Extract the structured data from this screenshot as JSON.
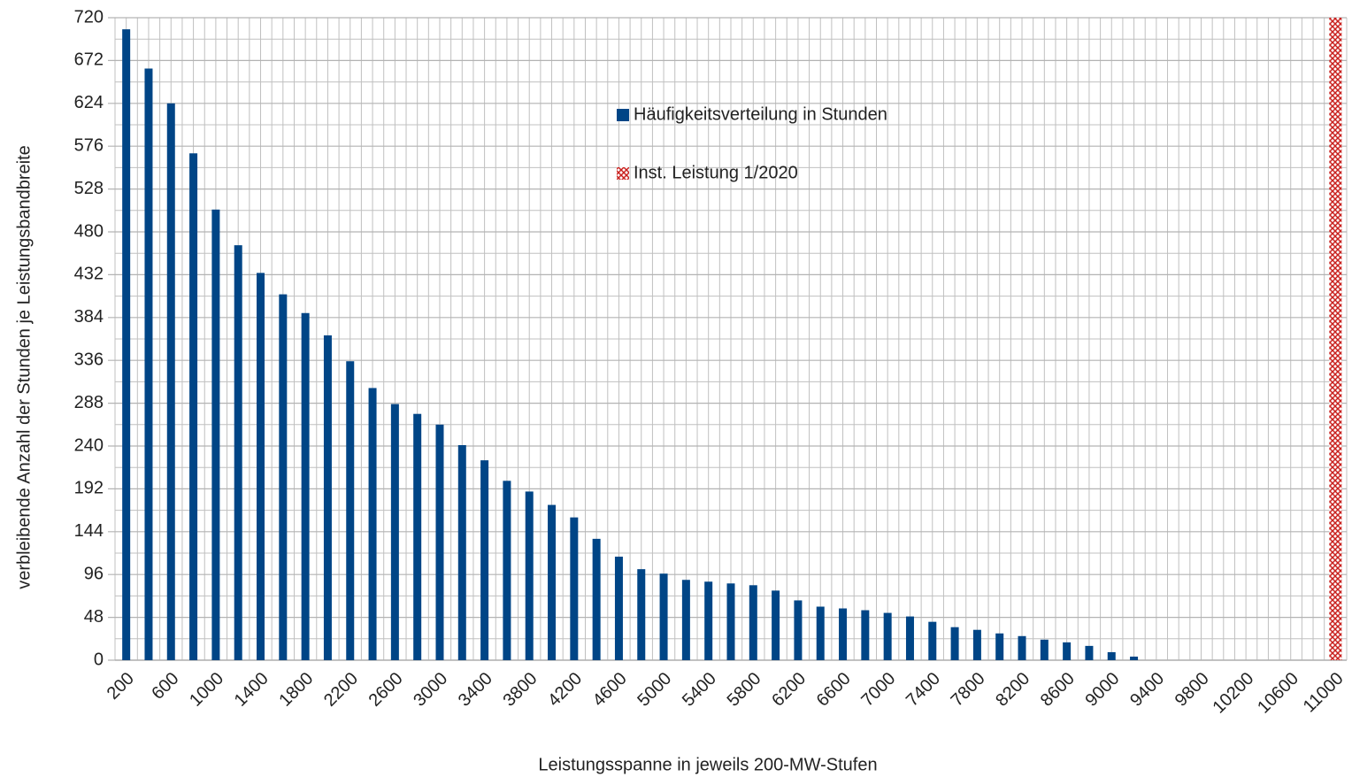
{
  "chart_data": {
    "type": "bar",
    "xlabel": "Leistungsspanne in jeweils 200-MW-Stufen",
    "ylabel": "verbleibende Anzahl der Stunden je Leistungsbandbreite",
    "categories": [
      "200",
      null,
      "600",
      null,
      "1000",
      null,
      "1400",
      null,
      "1800",
      null,
      "2200",
      null,
      "2600",
      null,
      "3000",
      null,
      "3400",
      null,
      "3800",
      null,
      "4200",
      null,
      "4600",
      null,
      "5000",
      null,
      "5400",
      null,
      "5800",
      null,
      "6200",
      null,
      "6600",
      null,
      "7000",
      null,
      "7400",
      null,
      "7800",
      null,
      "8200",
      null,
      "8600",
      null,
      "9000",
      null,
      "9400",
      null,
      "9800",
      null,
      "10200",
      null,
      "10600",
      null,
      "11000"
    ],
    "series": [
      {
        "name": "Häufigkeitsverteilung in Stunden",
        "color": "#004586",
        "pattern": "solid",
        "values": [
          707,
          663,
          624,
          568,
          505,
          465,
          434,
          410,
          389,
          364,
          335,
          305,
          287,
          276,
          264,
          241,
          224,
          201,
          189,
          174,
          160,
          136,
          116,
          102,
          97,
          90,
          88,
          86,
          84,
          78,
          67,
          60,
          58,
          56,
          53,
          49,
          43,
          37,
          34,
          30,
          27,
          23,
          20,
          16,
          9,
          4,
          0,
          0,
          0,
          0,
          0,
          0,
          0,
          0,
          null
        ]
      },
      {
        "name": "Inst. Leistung 1/2020",
        "color": "#c9211e",
        "pattern": "crosshatch",
        "values": [
          null,
          null,
          null,
          null,
          null,
          null,
          null,
          null,
          null,
          null,
          null,
          null,
          null,
          null,
          null,
          null,
          null,
          null,
          null,
          null,
          null,
          null,
          null,
          null,
          null,
          null,
          null,
          null,
          null,
          null,
          null,
          null,
          null,
          null,
          null,
          null,
          null,
          null,
          null,
          null,
          null,
          null,
          null,
          null,
          null,
          null,
          null,
          null,
          null,
          null,
          null,
          null,
          null,
          null,
          720
        ]
      }
    ],
    "ylim": [
      0,
      720
    ],
    "yticks": [
      0,
      48,
      96,
      144,
      192,
      240,
      288,
      336,
      384,
      432,
      480,
      528,
      576,
      624,
      672,
      720
    ],
    "grid": true
  }
}
